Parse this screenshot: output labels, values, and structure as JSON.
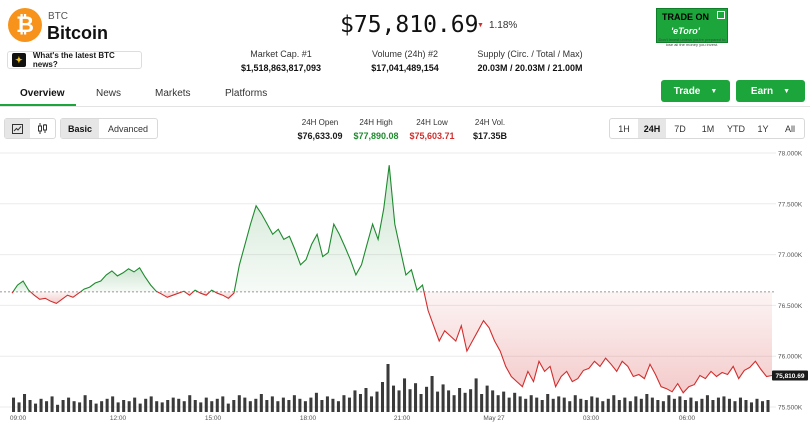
{
  "coin": {
    "ticker": "BTC",
    "name": "Bitcoin",
    "icon_glyph": "₿",
    "accent": "#f7931a"
  },
  "news": {
    "label": "What's the latest BTC news?"
  },
  "price": {
    "value": "$75,810.69",
    "change": "1.18%",
    "direction": "down"
  },
  "stats": [
    {
      "label": "Market Cap. #1",
      "value": "$1,518,863,817,093"
    },
    {
      "label": "Volume (24h) #2",
      "value": "$17,041,489,154"
    },
    {
      "label": "Supply (Circ. / Total / Max)",
      "value": "20.03M / 20.03M / 21.00M"
    }
  ],
  "ad": {
    "line1": "TRADE ON",
    "line2": "'eToro'",
    "disclaimer": "Don't invest unless you're prepared to lose all the money you invest."
  },
  "tabs": [
    "Overview",
    "News",
    "Markets",
    "Platforms"
  ],
  "buttons": {
    "trade": "Trade",
    "earn": "Earn"
  },
  "toolbar": {
    "modes": [
      "Basic",
      "Advanced"
    ],
    "ranges": [
      "1H",
      "24H",
      "7D",
      "1M",
      "YTD",
      "1Y",
      "All"
    ],
    "selected_range": "24H"
  },
  "ohlc": [
    {
      "label": "24H Open",
      "value": "$76,633.09",
      "color": "#111111"
    },
    {
      "label": "24H High",
      "value": "$77,890.08",
      "color": "#1e8a2e"
    },
    {
      "label": "24H Low",
      "value": "$75,603.71",
      "color": "#d22d2d"
    },
    {
      "label": "24H Vol.",
      "value": "$17.35B",
      "color": "#111111"
    }
  ],
  "chart_data": {
    "type": "area",
    "y_ticks": [
      "78.000K",
      "77.500K",
      "77.000K",
      "76.500K",
      "76.000K",
      "75.500K"
    ],
    "x_ticks": [
      "09:00",
      "12:00",
      "15:00",
      "18:00",
      "21:00",
      "May 27",
      "03:00",
      "06:00"
    ],
    "ylim": [
      75500,
      78000
    ],
    "baseline": 76633.09,
    "last_price_label": "75,810.69",
    "up_color": "#1e8a2e",
    "down_color": "#d22d2d",
    "prices": [
      76620,
      76700,
      76740,
      76650,
      76600,
      76560,
      76570,
      76540,
      76520,
      76560,
      76600,
      76580,
      76620,
      76660,
      76680,
      76720,
      76740,
      76800,
      76840,
      76790,
      76820,
      76860,
      76830,
      76870,
      76780,
      76700,
      76640,
      76610,
      76580,
      76600,
      76620,
      76640,
      76600,
      76650,
      76620,
      76600,
      76650,
      76620,
      76600,
      76570,
      76620,
      76900,
      77100,
      77300,
      77480,
      77400,
      77300,
      77200,
      77250,
      77150,
      77180,
      77050,
      76900,
      76950,
      77100,
      77200,
      76980,
      77020,
      77300,
      77200,
      77080,
      76950,
      76800,
      76900,
      77100,
      77300,
      77150,
      77450,
      77880,
      77300,
      77050,
      76800,
      76850,
      76650,
      76700,
      76450,
      76300,
      76150,
      76250,
      76200,
      76150,
      76300,
      76050,
      76150,
      76250,
      76350,
      76280,
      76150,
      76050,
      75900,
      75800,
      75750,
      75700,
      75850,
      75750,
      75950,
      75850,
      75900,
      75700,
      75800,
      75850,
      75750,
      75780,
      75860,
      75880,
      75950,
      75900,
      75980,
      75920,
      75850,
      75950,
      75900,
      75800,
      75820,
      75780,
      75920,
      75820,
      75700,
      75680,
      75650,
      75730,
      75640,
      75700,
      75720,
      75810,
      75780,
      75850,
      75800,
      75840,
      75820,
      75900,
      75780,
      75860,
      75890,
      75950,
      75870,
      75800,
      75810
    ],
    "volumes": [
      12,
      8,
      15,
      10,
      7,
      11,
      9,
      13,
      6,
      10,
      12,
      9,
      8,
      14,
      10,
      7,
      9,
      11,
      13,
      8,
      10,
      9,
      12,
      7,
      11,
      13,
      9,
      8,
      10,
      12,
      11,
      9,
      14,
      10,
      8,
      12,
      9,
      11,
      13,
      7,
      10,
      14,
      12,
      9,
      11,
      15,
      10,
      13,
      9,
      12,
      10,
      14,
      11,
      9,
      12,
      16,
      10,
      13,
      11,
      9,
      14,
      12,
      18,
      15,
      20,
      13,
      17,
      25,
      40,
      22,
      18,
      28,
      19,
      24,
      15,
      21,
      30,
      17,
      23,
      18,
      14,
      20,
      16,
      19,
      28,
      15,
      22,
      18,
      14,
      17,
      12,
      16,
      13,
      11,
      14,
      12,
      10,
      15,
      11,
      13,
      12,
      9,
      14,
      11,
      10,
      13,
      12,
      9,
      11,
      14,
      10,
      12,
      9,
      13,
      11,
      15,
      12,
      10,
      9,
      14,
      11,
      13,
      10,
      12,
      9,
      11,
      14,
      10,
      12,
      13,
      11,
      9,
      12,
      10,
      8,
      11,
      9,
      10
    ]
  }
}
